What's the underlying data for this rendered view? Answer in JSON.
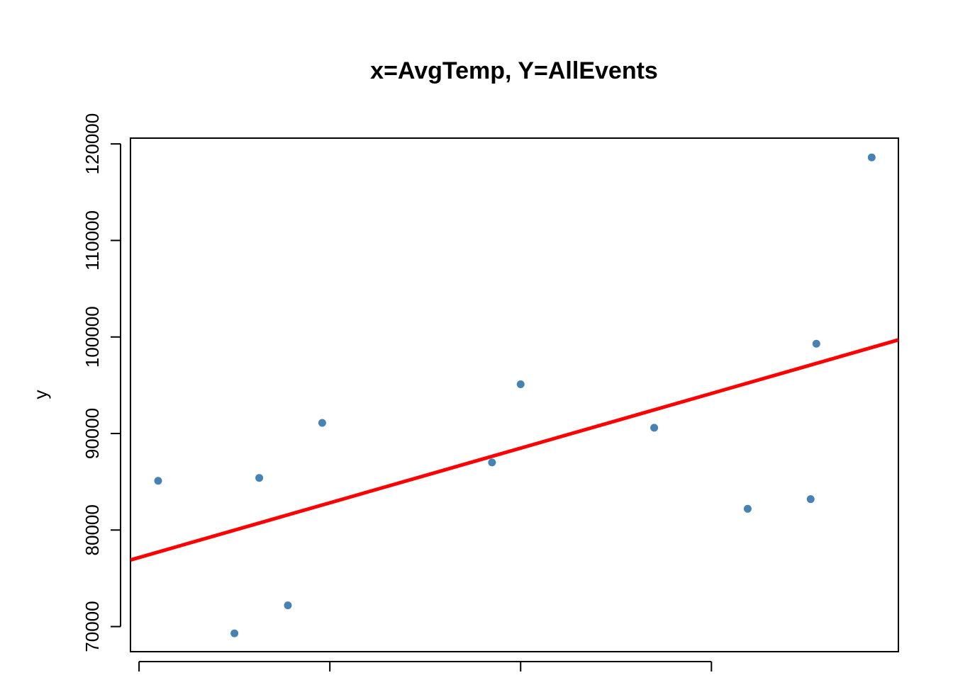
{
  "chart_data": {
    "type": "scatter",
    "title": "x=AvgTemp, Y=AllEvents",
    "xlabel": "",
    "ylabel": "y",
    "x_ticks": [
      40,
      50,
      60,
      70
    ],
    "x_tick_labels_visible": false,
    "xlim": [
      39.55,
      79.8
    ],
    "y_ticks": [
      70000,
      80000,
      90000,
      100000,
      110000,
      120000
    ],
    "y_tick_labels": [
      "70000",
      "80000",
      "90000",
      "100000",
      "110000",
      "120000"
    ],
    "ylim": [
      67400,
      120600
    ],
    "grid": false,
    "legend": "none",
    "points": [
      {
        "x": 41.0,
        "y": 85100
      },
      {
        "x": 45.0,
        "y": 69300
      },
      {
        "x": 46.3,
        "y": 85400
      },
      {
        "x": 47.8,
        "y": 72200
      },
      {
        "x": 49.6,
        "y": 91100
      },
      {
        "x": 58.5,
        "y": 87000
      },
      {
        "x": 60.0,
        "y": 95100
      },
      {
        "x": 67.0,
        "y": 90600
      },
      {
        "x": 71.9,
        "y": 82200
      },
      {
        "x": 75.2,
        "y": 83200
      },
      {
        "x": 75.5,
        "y": 99300
      },
      {
        "x": 78.4,
        "y": 118600
      }
    ],
    "regression_line": [
      {
        "x": 39.55,
        "y": 76900
      },
      {
        "x": 79.8,
        "y": 99700
      }
    ],
    "point_color": "#4682B4",
    "line_color": "#FF0000"
  }
}
